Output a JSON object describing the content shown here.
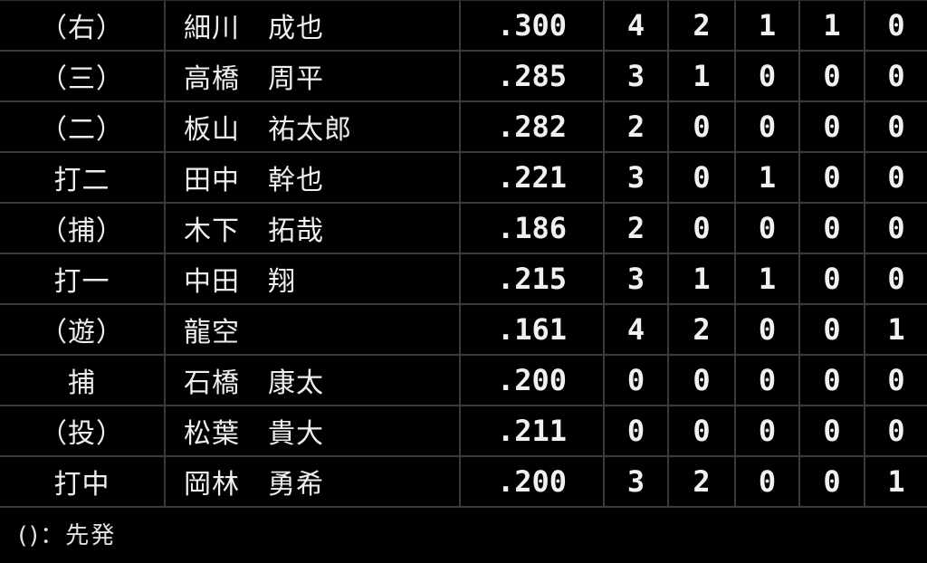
{
  "table": {
    "rows": [
      {
        "pos": "（右）",
        "name": "細川　成也",
        "avg": ".300",
        "stats": [
          "4",
          "2",
          "1",
          "1",
          "0"
        ]
      },
      {
        "pos": "（三）",
        "name": "高橋　周平",
        "avg": ".285",
        "stats": [
          "3",
          "1",
          "0",
          "0",
          "0"
        ]
      },
      {
        "pos": "（二）",
        "name": "板山　祐太郎",
        "avg": ".282",
        "stats": [
          "2",
          "0",
          "0",
          "0",
          "0"
        ]
      },
      {
        "pos": "打二",
        "name": "田中　幹也",
        "avg": ".221",
        "stats": [
          "3",
          "0",
          "1",
          "0",
          "0"
        ]
      },
      {
        "pos": "（捕）",
        "name": "木下　拓哉",
        "avg": ".186",
        "stats": [
          "2",
          "0",
          "0",
          "0",
          "0"
        ]
      },
      {
        "pos": "打一",
        "name": "中田　翔",
        "avg": ".215",
        "stats": [
          "3",
          "1",
          "1",
          "0",
          "0"
        ]
      },
      {
        "pos": "（遊）",
        "name": "龍空",
        "avg": ".161",
        "stats": [
          "4",
          "2",
          "0",
          "0",
          "1"
        ]
      },
      {
        "pos": "捕",
        "name": "石橋　康太",
        "avg": ".200",
        "stats": [
          "0",
          "0",
          "0",
          "0",
          "0"
        ]
      },
      {
        "pos": "（投）",
        "name": "松葉　貴大",
        "avg": ".211",
        "stats": [
          "0",
          "0",
          "0",
          "0",
          "0"
        ]
      },
      {
        "pos": "打中",
        "name": "岡林　勇希",
        "avg": ".200",
        "stats": [
          "3",
          "2",
          "0",
          "0",
          "1"
        ]
      }
    ],
    "footer_note": "()：先発"
  },
  "colors": {
    "background": "#000000",
    "grid_line": "#3a3a3a",
    "text": "#efefef"
  }
}
